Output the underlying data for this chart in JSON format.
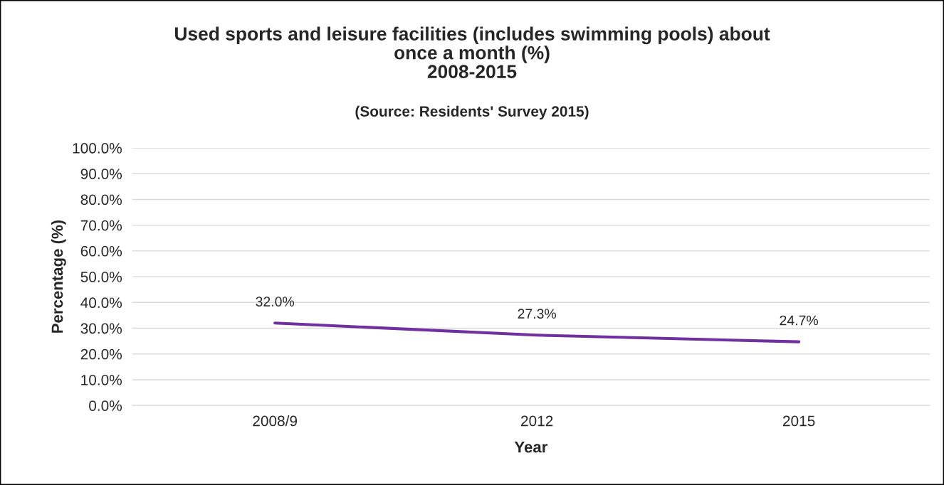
{
  "chart_data": {
    "type": "line",
    "title": "Used sports and leisure facilities (includes swimming pools) about\nonce a month (%)\n2008-2015",
    "subtitle": "(Source: Residents' Survey 2015)",
    "xlabel": "Year",
    "ylabel": "Percentage (%)",
    "categories": [
      "2008/9",
      "2012",
      "2015"
    ],
    "series": [
      {
        "color": "#7030a0",
        "values": [
          32.0,
          27.3,
          24.7
        ],
        "value_labels": [
          "32.0%",
          "27.3%",
          "24.7%"
        ]
      }
    ],
    "ylim": [
      0,
      100
    ],
    "yticks": [
      {
        "value": 0,
        "label": "0.0%"
      },
      {
        "value": 10,
        "label": "10.0%"
      },
      {
        "value": 20,
        "label": "20.0%"
      },
      {
        "value": 30,
        "label": "30.0%"
      },
      {
        "value": 40,
        "label": "40.0%"
      },
      {
        "value": 50,
        "label": "50.0%"
      },
      {
        "value": 60,
        "label": "60.0%"
      },
      {
        "value": 70,
        "label": "70.0%"
      },
      {
        "value": 80,
        "label": "80.0%"
      },
      {
        "value": 90,
        "label": "90.0%"
      },
      {
        "value": 100,
        "label": "100.0%"
      }
    ],
    "grid": "y",
    "legend": false,
    "marker": "none",
    "line_style": "solid"
  }
}
